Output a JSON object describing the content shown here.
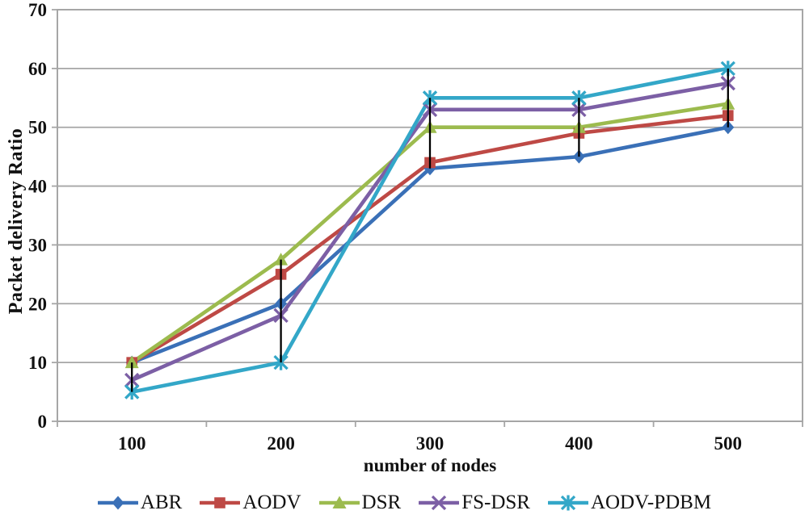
{
  "chart_data": {
    "type": "line",
    "title": "",
    "xlabel": "number of nodes",
    "ylabel": "Packet delivery Ratio",
    "categories": [
      "100",
      "200",
      "300",
      "400",
      "500"
    ],
    "ylim": [
      0,
      70
    ],
    "ytick_step": 10,
    "yticks": [
      "0",
      "10",
      "20",
      "30",
      "40",
      "50",
      "60",
      "70"
    ],
    "grid": "horizontal",
    "legend_position": "bottom",
    "series": [
      {
        "name": "ABR",
        "marker": "diamond",
        "color": "#3A70B7",
        "values": [
          10,
          20,
          43,
          45,
          50
        ]
      },
      {
        "name": "AODV",
        "marker": "square",
        "color": "#BE4945",
        "values": [
          10,
          25,
          44,
          49,
          52
        ]
      },
      {
        "name": "DSR",
        "marker": "triangle",
        "color": "#9CBB4E",
        "values": [
          10,
          27.5,
          50,
          50,
          54
        ]
      },
      {
        "name": "FS-DSR",
        "marker": "x",
        "color": "#7C5FA5",
        "values": [
          7,
          18,
          53,
          53,
          57.5
        ]
      },
      {
        "name": "AODV-PDBM",
        "marker": "asterisk",
        "color": "#33A7C8",
        "values": [
          5,
          10,
          55,
          55,
          60
        ]
      }
    ],
    "high_low_lines": {
      "color": "#000000",
      "ranges": [
        [
          5,
          10
        ],
        [
          10,
          27.5
        ],
        [
          43,
          55
        ],
        [
          45,
          55
        ],
        [
          50,
          60
        ]
      ]
    }
  },
  "colors": {
    "background": "#FFFFFF",
    "grid": "#A6A6A6",
    "axis": "#A6A6A6",
    "text": "#111111"
  }
}
